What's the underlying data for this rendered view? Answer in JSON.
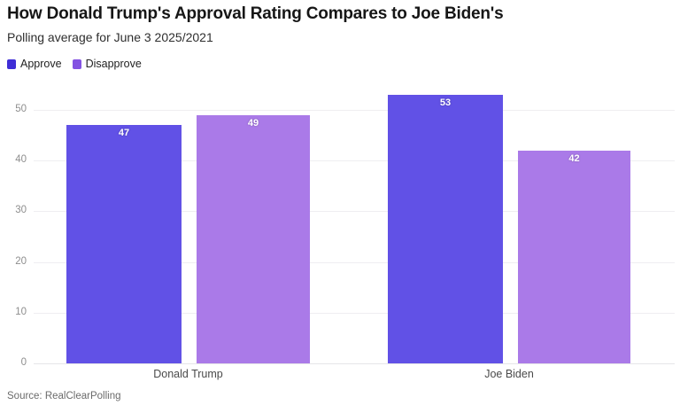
{
  "header": {
    "title": "How Donald Trump's Approval Rating Compares to Joe Biden's",
    "subtitle": "Polling average for June 3 2025/2021"
  },
  "colors": {
    "approve_bar": "#6151e6",
    "disapprove_bar": "#aa7ae8",
    "approve_swatch": "#3f2ed6",
    "disapprove_swatch": "#8352e2",
    "grid": "#efeef1",
    "title_text": "#161616",
    "tick_text": "#8e8e8e"
  },
  "chart_data": {
    "type": "bar",
    "title": "How Donald Trump's Approval Rating Compares to Joe Biden's",
    "subtitle": "Polling average for June 3 2025/2021",
    "categories": [
      "Donald Trump",
      "Joe Biden"
    ],
    "series": [
      {
        "name": "Approve",
        "values": [
          47,
          53
        ],
        "color": "#6151e6"
      },
      {
        "name": "Disapprove",
        "values": [
          49,
          42
        ],
        "color": "#aa7ae8"
      }
    ],
    "ylim": [
      0,
      55
    ],
    "yticks": [
      0,
      10,
      20,
      30,
      40,
      50
    ],
    "grid": "horizontal",
    "legend_position": "top-left",
    "value_labels": true
  },
  "footer": {
    "source": "Source: RealClearPolling"
  }
}
